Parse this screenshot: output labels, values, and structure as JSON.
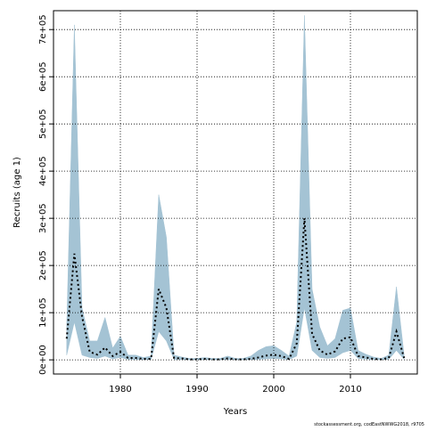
{
  "chart_data": {
    "type": "line",
    "x_label": "Years",
    "y_label": "Recruits (age 1)",
    "footer": "stockassessment.org, codEastNWWG2018, r9705",
    "x": [
      1973,
      1974,
      1975,
      1976,
      1977,
      1978,
      1979,
      1980,
      1981,
      1982,
      1983,
      1984,
      1985,
      1986,
      1987,
      1988,
      1989,
      1990,
      1991,
      1992,
      1993,
      1994,
      1995,
      1996,
      1997,
      1998,
      1999,
      2000,
      2001,
      2002,
      2003,
      2004,
      2005,
      2006,
      2007,
      2008,
      2009,
      2010,
      2011,
      2012,
      2013,
      2014,
      2015,
      2016,
      2017
    ],
    "series": [
      {
        "color": "#000000",
        "values": [
          45000,
          225000,
          92000,
          17000,
          11000,
          26000,
          8000,
          17000,
          4000,
          4000,
          2000,
          2000,
          150000,
          110000,
          4000,
          3000,
          1000,
          1000,
          2000,
          1000,
          1000,
          3000,
          1000,
          1000,
          2000,
          5000,
          9000,
          11000,
          8000,
          2000,
          35000,
          300000,
          55000,
          20000,
          11000,
          18000,
          45000,
          48000,
          8000,
          5000,
          2000,
          1000,
          4000,
          60000,
          4000
        ]
      }
    ],
    "band": {
      "color": "#a4c3d4",
      "upper": [
        70000,
        710000,
        110000,
        40000,
        40000,
        90000,
        25000,
        50000,
        10000,
        10000,
        5000,
        8000,
        350000,
        260000,
        10000,
        6000,
        3000,
        3000,
        5000,
        3000,
        3000,
        8000,
        3000,
        3000,
        8000,
        20000,
        28000,
        30000,
        20000,
        8000,
        80000,
        730000,
        150000,
        70000,
        30000,
        45000,
        105000,
        110000,
        20000,
        12000,
        6000,
        3000,
        10000,
        155000,
        10000
      ],
      "lower": [
        10000,
        80000,
        10000,
        5000,
        3000,
        8000,
        2000,
        5000,
        1000,
        1000,
        500,
        500,
        60000,
        40000,
        1000,
        800,
        300,
        300,
        500,
        300,
        300,
        800,
        300,
        300,
        500,
        1000,
        2000,
        3000,
        2000,
        500,
        8000,
        110000,
        20000,
        5000,
        3000,
        5000,
        15000,
        20000,
        3000,
        1500,
        600,
        300,
        1000,
        20000,
        1000
      ]
    },
    "xlim": [
      1971.28,
      2018.72
    ],
    "xticks": [
      1980,
      1990,
      2000,
      2010
    ],
    "ylim": [
      -30000,
      740000
    ],
    "yticks": [
      {
        "value": 0,
        "label": "0e+00"
      },
      {
        "value": 100000,
        "label": "1e+05"
      },
      {
        "value": 200000,
        "label": "2e+05"
      },
      {
        "value": 300000,
        "label": "3e+05"
      },
      {
        "value": 400000,
        "label": "4e+05"
      },
      {
        "value": 500000,
        "label": "5e+05"
      },
      {
        "value": 600000,
        "label": "6e+05"
      },
      {
        "value": 700000,
        "label": "7e+05"
      }
    ],
    "grid": true
  }
}
